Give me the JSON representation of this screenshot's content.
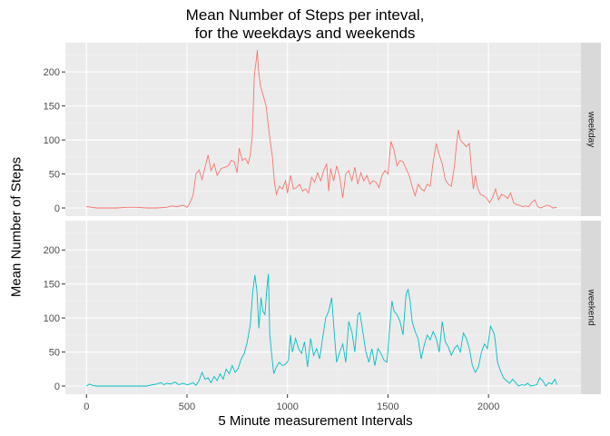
{
  "chart_data": {
    "type": "line",
    "title": [
      "Mean Number of Steps per inteval,",
      "for the weekdays and weekends"
    ],
    "xlabel": "5 Minute measurement Intervals",
    "ylabel": "Mean Number of Steps",
    "xlim": [
      -105,
      2460
    ],
    "ylim": [
      -12,
      243
    ],
    "x_ticks": [
      0,
      500,
      1000,
      1500,
      2000
    ],
    "y_ticks": [
      0,
      50,
      100,
      150,
      200
    ],
    "grid": true,
    "facets": [
      "weekday",
      "weekend"
    ],
    "series": [
      {
        "name": "weekday",
        "color": "#F8766D",
        "points": [
          [
            0,
            2
          ],
          [
            50,
            0
          ],
          [
            100,
            0
          ],
          [
            150,
            0
          ],
          [
            200,
            1
          ],
          [
            250,
            1
          ],
          [
            300,
            0
          ],
          [
            350,
            0
          ],
          [
            400,
            1
          ],
          [
            420,
            3
          ],
          [
            450,
            2
          ],
          [
            480,
            4
          ],
          [
            500,
            1
          ],
          [
            510,
            5
          ],
          [
            530,
            18
          ],
          [
            545,
            50
          ],
          [
            560,
            56
          ],
          [
            575,
            42
          ],
          [
            590,
            60
          ],
          [
            605,
            78
          ],
          [
            620,
            55
          ],
          [
            635,
            65
          ],
          [
            650,
            48
          ],
          [
            670,
            58
          ],
          [
            690,
            60
          ],
          [
            705,
            62
          ],
          [
            720,
            70
          ],
          [
            735,
            68
          ],
          [
            750,
            52
          ],
          [
            760,
            88
          ],
          [
            775,
            70
          ],
          [
            790,
            73
          ],
          [
            805,
            65
          ],
          [
            815,
            78
          ],
          [
            825,
            105
          ],
          [
            835,
            195
          ],
          [
            845,
            218
          ],
          [
            850,
            232
          ],
          [
            855,
            205
          ],
          [
            865,
            180
          ],
          [
            880,
            165
          ],
          [
            895,
            148
          ],
          [
            905,
            120
          ],
          [
            915,
            96
          ],
          [
            925,
            75
          ],
          [
            935,
            38
          ],
          [
            945,
            20
          ],
          [
            960,
            32
          ],
          [
            975,
            28
          ],
          [
            990,
            40
          ],
          [
            1000,
            22
          ],
          [
            1015,
            48
          ],
          [
            1030,
            28
          ],
          [
            1045,
            30
          ],
          [
            1060,
            35
          ],
          [
            1075,
            25
          ],
          [
            1090,
            28
          ],
          [
            1105,
            22
          ],
          [
            1120,
            45
          ],
          [
            1135,
            38
          ],
          [
            1150,
            52
          ],
          [
            1165,
            40
          ],
          [
            1180,
            55
          ],
          [
            1195,
            65
          ],
          [
            1205,
            25
          ],
          [
            1215,
            58
          ],
          [
            1230,
            40
          ],
          [
            1245,
            62
          ],
          [
            1260,
            45
          ],
          [
            1275,
            15
          ],
          [
            1290,
            50
          ],
          [
            1305,
            55
          ],
          [
            1320,
            40
          ],
          [
            1335,
            60
          ],
          [
            1350,
            35
          ],
          [
            1365,
            52
          ],
          [
            1380,
            40
          ],
          [
            1395,
            48
          ],
          [
            1410,
            35
          ],
          [
            1425,
            40
          ],
          [
            1440,
            38
          ],
          [
            1455,
            30
          ],
          [
            1470,
            48
          ],
          [
            1485,
            55
          ],
          [
            1500,
            50
          ],
          [
            1515,
            98
          ],
          [
            1530,
            85
          ],
          [
            1545,
            62
          ],
          [
            1560,
            70
          ],
          [
            1575,
            68
          ],
          [
            1590,
            58
          ],
          [
            1605,
            48
          ],
          [
            1620,
            32
          ],
          [
            1635,
            18
          ],
          [
            1650,
            35
          ],
          [
            1665,
            28
          ],
          [
            1680,
            25
          ],
          [
            1695,
            35
          ],
          [
            1710,
            32
          ],
          [
            1725,
            68
          ],
          [
            1740,
            95
          ],
          [
            1755,
            78
          ],
          [
            1770,
            65
          ],
          [
            1785,
            42
          ],
          [
            1800,
            35
          ],
          [
            1815,
            32
          ],
          [
            1830,
            60
          ],
          [
            1840,
            90
          ],
          [
            1850,
            115
          ],
          [
            1860,
            100
          ],
          [
            1875,
            95
          ],
          [
            1890,
            90
          ],
          [
            1905,
            95
          ],
          [
            1915,
            58
          ],
          [
            1925,
            28
          ],
          [
            1935,
            48
          ],
          [
            1945,
            30
          ],
          [
            1960,
            20
          ],
          [
            1975,
            18
          ],
          [
            1990,
            15
          ],
          [
            2005,
            8
          ],
          [
            2020,
            15
          ],
          [
            2035,
            28
          ],
          [
            2050,
            12
          ],
          [
            2065,
            20
          ],
          [
            2080,
            18
          ],
          [
            2095,
            14
          ],
          [
            2110,
            22
          ],
          [
            2125,
            8
          ],
          [
            2140,
            5
          ],
          [
            2155,
            4
          ],
          [
            2170,
            2
          ],
          [
            2185,
            3
          ],
          [
            2200,
            2
          ],
          [
            2215,
            8
          ],
          [
            2230,
            12
          ],
          [
            2245,
            2
          ],
          [
            2260,
            0
          ],
          [
            2275,
            2
          ],
          [
            2290,
            4
          ],
          [
            2305,
            3
          ],
          [
            2320,
            0
          ],
          [
            2340,
            1
          ]
        ]
      },
      {
        "name": "weekend",
        "color": "#00BFC4",
        "points": [
          [
            0,
            0
          ],
          [
            15,
            3
          ],
          [
            30,
            1
          ],
          [
            50,
            0
          ],
          [
            100,
            0
          ],
          [
            150,
            0
          ],
          [
            200,
            0
          ],
          [
            250,
            0
          ],
          [
            300,
            0
          ],
          [
            330,
            2
          ],
          [
            350,
            3
          ],
          [
            370,
            5
          ],
          [
            385,
            2
          ],
          [
            400,
            4
          ],
          [
            420,
            3
          ],
          [
            440,
            6
          ],
          [
            460,
            2
          ],
          [
            480,
            4
          ],
          [
            500,
            2
          ],
          [
            515,
            3
          ],
          [
            530,
            5
          ],
          [
            545,
            1
          ],
          [
            560,
            8
          ],
          [
            575,
            20
          ],
          [
            590,
            10
          ],
          [
            605,
            12
          ],
          [
            620,
            5
          ],
          [
            635,
            14
          ],
          [
            650,
            8
          ],
          [
            665,
            18
          ],
          [
            680,
            10
          ],
          [
            695,
            25
          ],
          [
            710,
            18
          ],
          [
            725,
            30
          ],
          [
            740,
            20
          ],
          [
            755,
            26
          ],
          [
            770,
            40
          ],
          [
            785,
            48
          ],
          [
            800,
            65
          ],
          [
            815,
            90
          ],
          [
            828,
            140
          ],
          [
            838,
            163
          ],
          [
            848,
            140
          ],
          [
            858,
            85
          ],
          [
            868,
            130
          ],
          [
            878,
            110
          ],
          [
            888,
            105
          ],
          [
            898,
            145
          ],
          [
            905,
            165
          ],
          [
            912,
            75
          ],
          [
            922,
            45
          ],
          [
            932,
            18
          ],
          [
            945,
            28
          ],
          [
            960,
            35
          ],
          [
            975,
            30
          ],
          [
            990,
            32
          ],
          [
            1005,
            38
          ],
          [
            1015,
            75
          ],
          [
            1025,
            50
          ],
          [
            1040,
            70
          ],
          [
            1055,
            55
          ],
          [
            1070,
            48
          ],
          [
            1085,
            65
          ],
          [
            1100,
            28
          ],
          [
            1115,
            70
          ],
          [
            1130,
            45
          ],
          [
            1145,
            55
          ],
          [
            1160,
            40
          ],
          [
            1175,
            70
          ],
          [
            1190,
            100
          ],
          [
            1205,
            110
          ],
          [
            1220,
            130
          ],
          [
            1235,
            70
          ],
          [
            1245,
            35
          ],
          [
            1260,
            50
          ],
          [
            1275,
            62
          ],
          [
            1290,
            35
          ],
          [
            1305,
            95
          ],
          [
            1320,
            80
          ],
          [
            1335,
            50
          ],
          [
            1350,
            105
          ],
          [
            1360,
            108
          ],
          [
            1375,
            80
          ],
          [
            1390,
            50
          ],
          [
            1405,
            35
          ],
          [
            1420,
            55
          ],
          [
            1435,
            30
          ],
          [
            1450,
            55
          ],
          [
            1465,
            48
          ],
          [
            1480,
            38
          ],
          [
            1495,
            35
          ],
          [
            1510,
            90
          ],
          [
            1520,
            125
          ],
          [
            1530,
            110
          ],
          [
            1545,
            105
          ],
          [
            1560,
            95
          ],
          [
            1575,
            75
          ],
          [
            1590,
            135
          ],
          [
            1600,
            142
          ],
          [
            1610,
            125
          ],
          [
            1620,
            95
          ],
          [
            1635,
            80
          ],
          [
            1650,
            70
          ],
          [
            1665,
            40
          ],
          [
            1680,
            60
          ],
          [
            1695,
            75
          ],
          [
            1710,
            68
          ],
          [
            1725,
            80
          ],
          [
            1740,
            70
          ],
          [
            1755,
            50
          ],
          [
            1770,
            95
          ],
          [
            1785,
            65
          ],
          [
            1800,
            58
          ],
          [
            1815,
            45
          ],
          [
            1830,
            55
          ],
          [
            1845,
            60
          ],
          [
            1860,
            50
          ],
          [
            1875,
            78
          ],
          [
            1890,
            70
          ],
          [
            1905,
            55
          ],
          [
            1920,
            30
          ],
          [
            1935,
            20
          ],
          [
            1950,
            28
          ],
          [
            1965,
            50
          ],
          [
            1980,
            62
          ],
          [
            1995,
            55
          ],
          [
            2010,
            88
          ],
          [
            2020,
            82
          ],
          [
            2030,
            75
          ],
          [
            2045,
            35
          ],
          [
            2060,
            22
          ],
          [
            2075,
            12
          ],
          [
            2090,
            8
          ],
          [
            2105,
            4
          ],
          [
            2120,
            10
          ],
          [
            2135,
            5
          ],
          [
            2150,
            0
          ],
          [
            2165,
            2
          ],
          [
            2180,
            1
          ],
          [
            2195,
            4
          ],
          [
            2210,
            0
          ],
          [
            2225,
            1
          ],
          [
            2240,
            2
          ],
          [
            2255,
            12
          ],
          [
            2270,
            8
          ],
          [
            2285,
            0
          ],
          [
            2300,
            5
          ],
          [
            2315,
            3
          ],
          [
            2330,
            10
          ],
          [
            2340,
            2
          ]
        ]
      }
    ]
  }
}
